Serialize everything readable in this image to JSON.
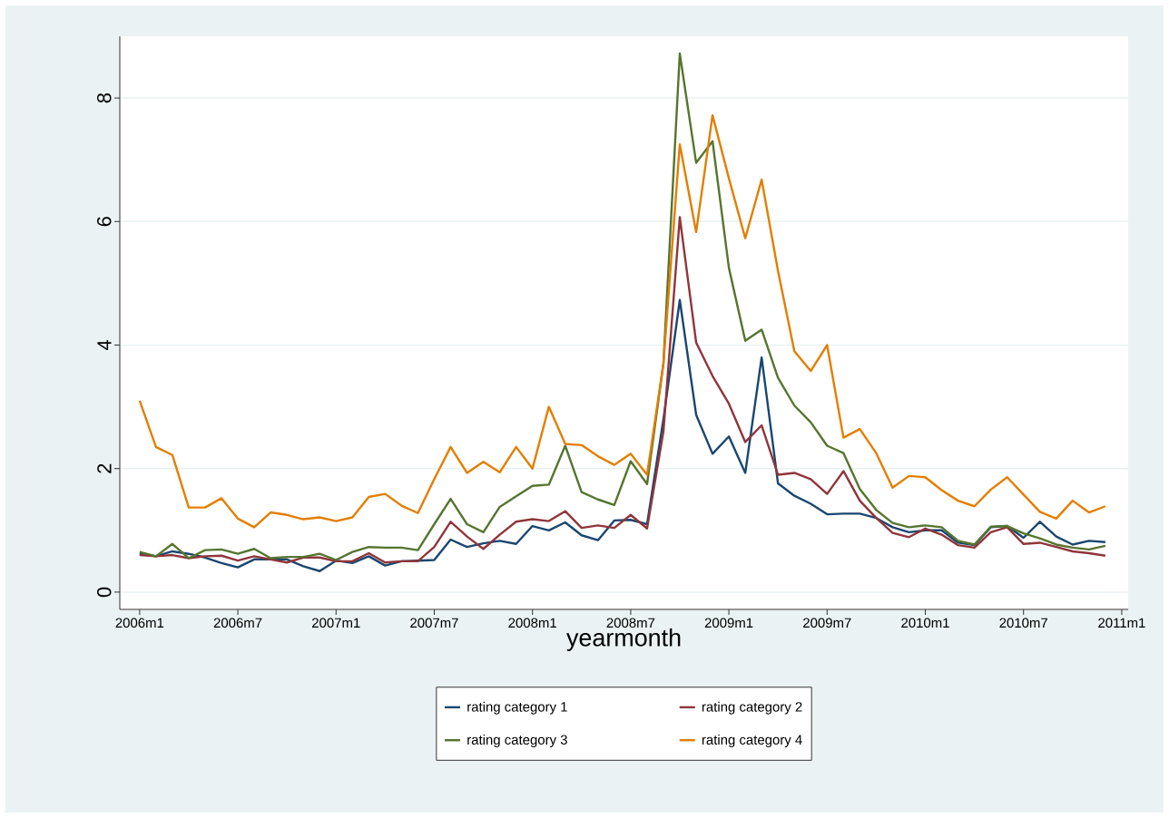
{
  "chart_data": {
    "type": "line",
    "xlabel": "yearmonth",
    "x": [
      "2006-01",
      "2006-02",
      "2006-03",
      "2006-04",
      "2006-05",
      "2006-06",
      "2006-07",
      "2006-08",
      "2006-09",
      "2006-10",
      "2006-11",
      "2006-12",
      "2007-01",
      "2007-02",
      "2007-03",
      "2007-04",
      "2007-05",
      "2007-06",
      "2007-07",
      "2007-08",
      "2007-09",
      "2007-10",
      "2007-11",
      "2007-12",
      "2008-01",
      "2008-02",
      "2008-03",
      "2008-04",
      "2008-05",
      "2008-06",
      "2008-07",
      "2008-08",
      "2008-09",
      "2008-10",
      "2008-11",
      "2008-12",
      "2009-01",
      "2009-02",
      "2009-03",
      "2009-04",
      "2009-05",
      "2009-06",
      "2009-07",
      "2009-08",
      "2009-09",
      "2009-10",
      "2009-11",
      "2009-12",
      "2010-01",
      "2010-02",
      "2010-03",
      "2010-04",
      "2010-05",
      "2010-06",
      "2010-07",
      "2010-08",
      "2010-09",
      "2010-10",
      "2010-11",
      "2010-12"
    ],
    "series": [
      {
        "name": "rating category 1",
        "color": "#1a476f",
        "values": [
          0.62,
          0.58,
          0.66,
          0.62,
          0.56,
          0.47,
          0.4,
          0.53,
          0.53,
          0.53,
          0.42,
          0.34,
          0.51,
          0.47,
          0.58,
          0.43,
          0.5,
          0.51,
          0.52,
          0.85,
          0.73,
          0.79,
          0.83,
          0.78,
          1.07,
          1.0,
          1.13,
          0.92,
          0.84,
          1.16,
          1.17,
          1.1,
          2.8,
          4.73,
          2.87,
          2.24,
          2.52,
          1.93,
          3.8,
          1.76,
          1.56,
          1.43,
          1.26,
          1.27,
          1.27,
          1.2,
          1.05,
          0.97,
          1.0,
          1.0,
          0.8,
          0.76,
          1.05,
          1.07,
          0.88,
          1.14,
          0.9,
          0.77,
          0.83,
          0.81
        ]
      },
      {
        "name": "rating category 2",
        "color": "#90353b",
        "values": [
          0.6,
          0.58,
          0.6,
          0.55,
          0.58,
          0.59,
          0.51,
          0.58,
          0.53,
          0.48,
          0.56,
          0.56,
          0.5,
          0.5,
          0.63,
          0.48,
          0.5,
          0.5,
          0.73,
          1.14,
          0.9,
          0.7,
          0.93,
          1.14,
          1.18,
          1.15,
          1.31,
          1.04,
          1.08,
          1.04,
          1.25,
          1.03,
          2.6,
          6.07,
          4.04,
          3.5,
          3.05,
          2.43,
          2.7,
          1.9,
          1.93,
          1.83,
          1.59,
          1.96,
          1.48,
          1.2,
          0.96,
          0.89,
          1.03,
          0.93,
          0.76,
          0.72,
          0.97,
          1.05,
          0.78,
          0.8,
          0.73,
          0.66,
          0.63,
          0.59
        ]
      },
      {
        "name": "rating category 3",
        "color": "#55752f",
        "values": [
          0.65,
          0.58,
          0.78,
          0.55,
          0.68,
          0.69,
          0.62,
          0.7,
          0.55,
          0.57,
          0.57,
          0.62,
          0.52,
          0.65,
          0.73,
          0.72,
          0.72,
          0.68,
          1.1,
          1.51,
          1.1,
          0.97,
          1.38,
          1.55,
          1.72,
          1.74,
          2.37,
          1.62,
          1.5,
          1.41,
          2.12,
          1.75,
          3.7,
          8.72,
          6.95,
          7.3,
          5.25,
          4.07,
          4.25,
          3.47,
          3.02,
          2.75,
          2.37,
          2.25,
          1.67,
          1.33,
          1.12,
          1.05,
          1.08,
          1.05,
          0.83,
          0.77,
          1.06,
          1.07,
          0.95,
          0.87,
          0.77,
          0.72,
          0.69,
          0.75
        ]
      },
      {
        "name": "rating category 4",
        "color": "#e37e00",
        "values": [
          3.1,
          2.35,
          2.22,
          1.37,
          1.37,
          1.52,
          1.19,
          1.05,
          1.29,
          1.25,
          1.18,
          1.21,
          1.15,
          1.21,
          1.54,
          1.59,
          1.4,
          1.28,
          1.83,
          2.35,
          1.93,
          2.11,
          1.94,
          2.35,
          2.0,
          3.0,
          2.4,
          2.38,
          2.2,
          2.06,
          2.24,
          1.9,
          3.7,
          7.25,
          5.83,
          7.72,
          6.7,
          5.73,
          6.68,
          5.2,
          3.9,
          3.58,
          4.0,
          2.5,
          2.64,
          2.25,
          1.69,
          1.88,
          1.86,
          1.65,
          1.48,
          1.39,
          1.66,
          1.86,
          1.58,
          1.3,
          1.19,
          1.48,
          1.29,
          1.39
        ]
      }
    ],
    "xlim": [
      "2005-11-25",
      "2011-01-13"
    ],
    "ylim": [
      -0.28,
      9.0
    ],
    "xticks": [
      {
        "value": "2006-01",
        "label": "2006m1"
      },
      {
        "value": "2006-07",
        "label": "2006m7"
      },
      {
        "value": "2007-01",
        "label": "2007m1"
      },
      {
        "value": "2007-07",
        "label": "2007m7"
      },
      {
        "value": "2008-01",
        "label": "2008m1"
      },
      {
        "value": "2008-07",
        "label": "2008m7"
      },
      {
        "value": "2009-01",
        "label": "2009m1"
      },
      {
        "value": "2009-07",
        "label": "2009m7"
      },
      {
        "value": "2010-01",
        "label": "2010m1"
      },
      {
        "value": "2010-07",
        "label": "2010m7"
      },
      {
        "value": "2011-01",
        "label": "2011m1"
      }
    ],
    "yticks": [
      0,
      2,
      4,
      6,
      8
    ],
    "grid": "y",
    "legend": "bottom",
    "marker": "none",
    "line_style": "solid"
  }
}
